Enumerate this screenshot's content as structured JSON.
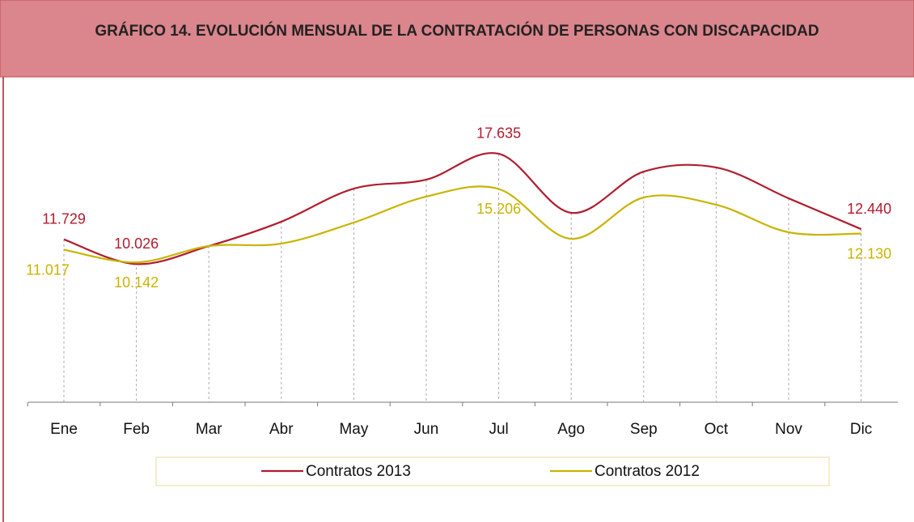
{
  "chart_data": {
    "type": "line",
    "title": "GRÁFICO 14. EVOLUCIÓN MENSUAL DE LA CONTRATACIÓN DE PERSONAS CON DISCAPACIDAD",
    "categories": [
      "Ene",
      "Feb",
      "Mar",
      "Abr",
      "May",
      "Jun",
      "Jul",
      "Ago",
      "Sep",
      "Oct",
      "Nov",
      "Dic"
    ],
    "series": [
      {
        "name": "Contratos 2013",
        "color": "#b01c2e",
        "values": [
          11729,
          10026,
          11270,
          12950,
          15230,
          15850,
          17635,
          13560,
          16400,
          16690,
          14560,
          12440
        ],
        "value_labels": [
          "11.729",
          "10.026",
          null,
          null,
          null,
          null,
          "17.635",
          null,
          null,
          null,
          null,
          "12.440"
        ]
      },
      {
        "name": "Contratos 2012",
        "color": "#c8b400",
        "values": [
          11017,
          10142,
          11270,
          11440,
          12890,
          14680,
          15206,
          11770,
          14620,
          14120,
          12220,
          12130
        ],
        "value_labels": [
          "11.017",
          "10.142",
          null,
          null,
          null,
          null,
          "15.206",
          null,
          null,
          null,
          null,
          "12.130"
        ]
      }
    ],
    "ylim": [
      500,
      20000
    ],
    "legend": "bottom"
  }
}
